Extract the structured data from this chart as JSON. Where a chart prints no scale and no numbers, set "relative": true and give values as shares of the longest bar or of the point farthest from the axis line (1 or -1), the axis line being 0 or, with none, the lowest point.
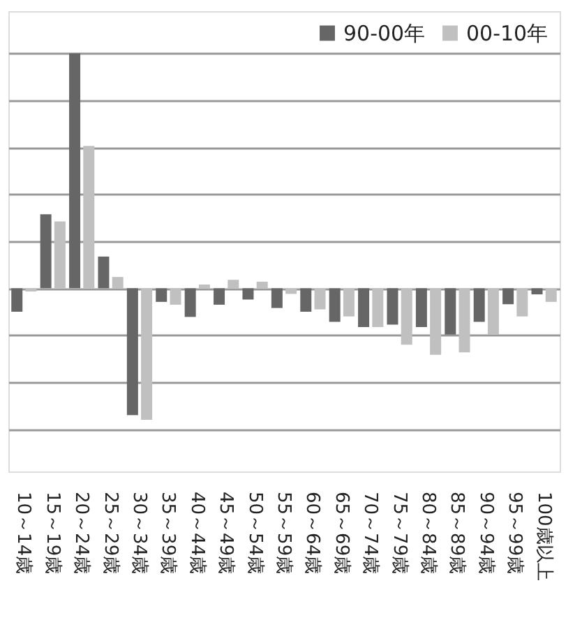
{
  "chart_data": {
    "type": "bar",
    "relative": true,
    "grid": "y",
    "legend": "top right",
    "categories": [
      "10～14歳",
      "15～19歳",
      "20～24歳",
      "25～29歳",
      "30～34歳",
      "35～39歳",
      "40～44歳",
      "45～49歳",
      "50～54歳",
      "55～59歳",
      "60～64歳",
      "65～69歳",
      "70～74歳",
      "75～79歳",
      "80～84歳",
      "85～89歳",
      "90～94歳",
      "95～99歳",
      "100歳以上"
    ],
    "series": [
      {
        "name": "90-00年",
        "color": "#666666",
        "values": [
          -0.1,
          0.315,
          1.0,
          0.135,
          -0.54,
          -0.058,
          -0.122,
          -0.07,
          -0.048,
          -0.084,
          -0.1,
          -0.143,
          -0.165,
          -0.155,
          -0.165,
          -0.197,
          -0.143,
          -0.068,
          -0.026
        ]
      },
      {
        "name": "00-10年",
        "color": "#c0c0c0",
        "values": [
          -0.014,
          0.285,
          0.606,
          0.048,
          -0.56,
          -0.07,
          0.016,
          0.036,
          0.028,
          -0.024,
          -0.09,
          -0.12,
          -0.165,
          -0.24,
          -0.283,
          -0.273,
          -0.197,
          -0.12,
          -0.058
        ]
      }
    ]
  }
}
